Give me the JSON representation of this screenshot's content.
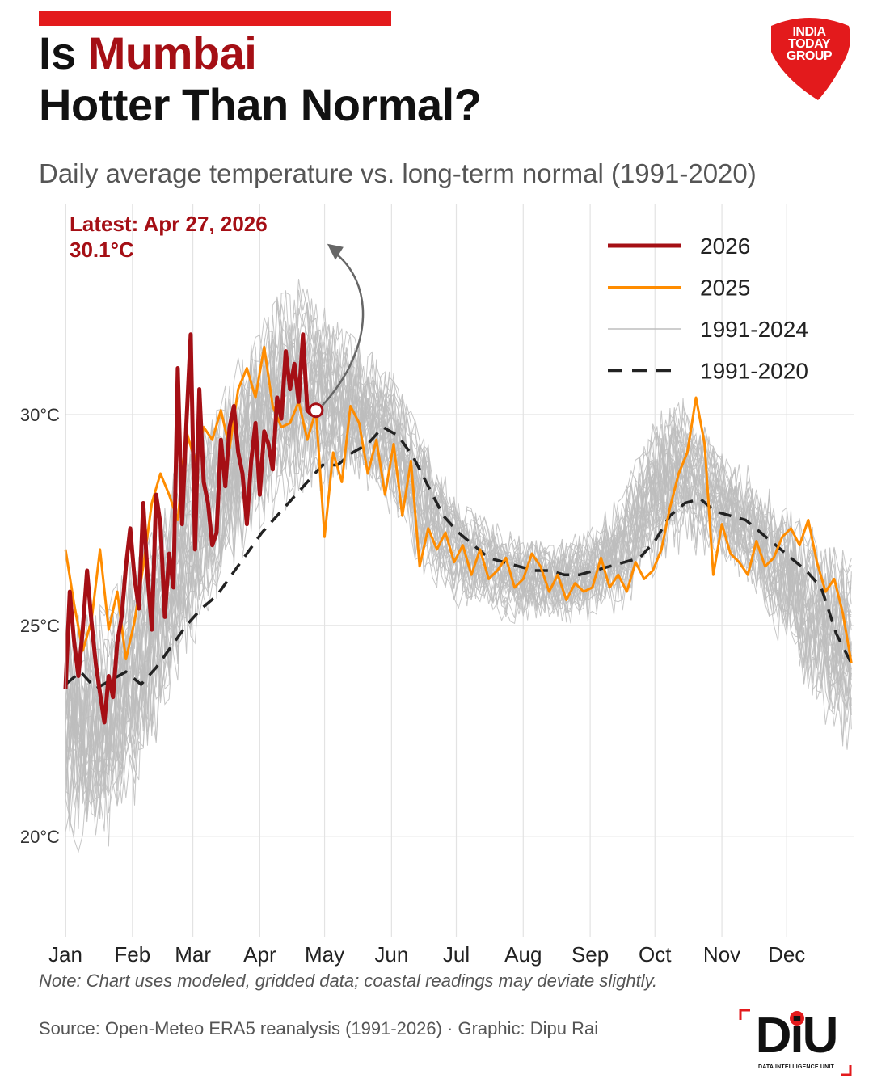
{
  "header": {
    "title_prefix": "Is ",
    "title_city": "Mumbai",
    "title_line2": "Hotter Than Normal?",
    "subtitle": "Daily average temperature vs. long-term normal (1991-2020)"
  },
  "brand": {
    "top_logo_line1": "INDIA",
    "top_logo_line2": "TODAY",
    "top_logo_line3": "GROUP",
    "bottom_logo": "DiU",
    "bottom_logo_sub": "DATA INTELLIGENCE UNIT"
  },
  "colors": {
    "accent": "#e31a1c",
    "series_2026": "#a50f15",
    "series_2025": "#ff8c00",
    "historical": "#bdbdbd",
    "normal": "#222222"
  },
  "annotation": {
    "line1": "Latest: Apr 27, 2026",
    "line2": "30.1°C"
  },
  "footer": {
    "note": "Note: Chart uses modeled, gridded data; coastal readings may deviate slightly.",
    "source": "Source: Open-Meteo ERA5 reanalysis (1991-2026) · Graphic: Dipu Rai"
  },
  "chart_data": {
    "type": "line",
    "title": "Is Mumbai Hotter Than Normal?",
    "subtitle": "Daily average temperature vs. long-term normal (1991-2020)",
    "x_categories": [
      "Jan",
      "Feb",
      "Mar",
      "Apr",
      "May",
      "Jun",
      "Jul",
      "Aug",
      "Sep",
      "Oct",
      "Nov",
      "Dec"
    ],
    "y_ticks": [
      20,
      25,
      30
    ],
    "y_tick_labels": [
      "20°C",
      "25°C",
      "30°C"
    ],
    "ylim": [
      17.6,
      35.0
    ],
    "xlim_days": [
      1,
      366
    ],
    "grid": true,
    "legend_position": "top-right",
    "legend": [
      "2026",
      "2025",
      "1991-2024",
      "1991-2020"
    ],
    "historical_band": {
      "name": "1991-2024",
      "x_day": [
        1,
        15,
        32,
        46,
        60,
        74,
        91,
        105,
        121,
        135,
        152,
        166,
        182,
        196,
        213,
        227,
        244,
        258,
        274,
        288,
        305,
        319,
        335,
        349,
        366
      ],
      "min": [
        19.6,
        19.3,
        20.6,
        22.4,
        24.3,
        25.8,
        27.3,
        27.8,
        28.0,
        28.2,
        27.5,
        26.2,
        25.4,
        25.2,
        25.0,
        25.0,
        25.1,
        25.3,
        26.2,
        26.8,
        26.3,
        25.6,
        24.3,
        22.9,
        21.5
      ],
      "max": [
        25.5,
        25.6,
        26.9,
        28.4,
        29.8,
        30.8,
        32.4,
        33.5,
        32.8,
        32.0,
        31.2,
        29.8,
        28.2,
        27.6,
        27.2,
        27.1,
        27.4,
        28.2,
        30.2,
        30.6,
        29.4,
        28.7,
        28.0,
        27.4,
        26.9
      ]
    },
    "series": [
      {
        "name": "1991-2020",
        "x_day": [
          1,
          8,
          15,
          22,
          29,
          36,
          43,
          50,
          57,
          64,
          71,
          78,
          85,
          92,
          99,
          106,
          113,
          120,
          127,
          134,
          141,
          148,
          155,
          162,
          169,
          176,
          183,
          190,
          197,
          204,
          211,
          218,
          225,
          232,
          239,
          246,
          253,
          260,
          267,
          274,
          281,
          288,
          295,
          302,
          309,
          316,
          323,
          330,
          337,
          344,
          351,
          358,
          365
        ],
        "values": [
          23.6,
          23.9,
          23.5,
          23.7,
          23.9,
          23.6,
          24.0,
          24.5,
          25.0,
          25.4,
          25.7,
          26.2,
          26.7,
          27.2,
          27.6,
          28.0,
          28.4,
          28.8,
          28.8,
          29.1,
          29.3,
          29.7,
          29.5,
          29.0,
          28.3,
          27.6,
          27.2,
          26.9,
          26.6,
          26.5,
          26.4,
          26.3,
          26.3,
          26.2,
          26.2,
          26.3,
          26.4,
          26.5,
          26.6,
          27.0,
          27.6,
          27.9,
          28.0,
          27.7,
          27.6,
          27.5,
          27.2,
          26.9,
          26.6,
          26.3,
          25.9,
          24.8,
          24.1
        ]
      },
      {
        "name": "2025",
        "x_day": [
          1,
          5,
          9,
          13,
          17,
          21,
          25,
          29,
          33,
          37,
          41,
          45,
          49,
          53,
          57,
          61,
          65,
          69,
          73,
          77,
          81,
          85,
          89,
          93,
          97,
          101,
          105,
          109,
          113,
          117,
          121,
          125,
          129,
          133,
          137,
          141,
          145,
          149,
          153,
          157,
          161,
          165,
          169,
          173,
          177,
          181,
          185,
          189,
          193,
          197,
          201,
          205,
          209,
          213,
          217,
          221,
          225,
          229,
          233,
          237,
          241,
          245,
          249,
          253,
          257,
          261,
          265,
          269,
          273,
          277,
          281,
          285,
          289,
          293,
          297,
          301,
          305,
          309,
          313,
          317,
          321,
          325,
          329,
          333,
          337,
          341,
          345,
          349,
          353,
          357,
          361,
          365
        ],
        "values": [
          26.8,
          25.5,
          24.4,
          25.1,
          26.8,
          24.9,
          25.8,
          24.2,
          25.1,
          26.4,
          27.9,
          28.6,
          28.1,
          27.5,
          29.6,
          28.9,
          29.7,
          29.4,
          30.1,
          29.2,
          30.6,
          31.1,
          30.4,
          31.6,
          30.2,
          29.7,
          29.8,
          30.3,
          29.4,
          30.1,
          27.1,
          29.1,
          28.4,
          30.2,
          29.8,
          28.6,
          29.4,
          28.1,
          29.3,
          27.6,
          28.9,
          26.4,
          27.3,
          26.8,
          27.2,
          26.5,
          26.9,
          26.2,
          26.8,
          26.1,
          26.3,
          26.6,
          25.9,
          26.1,
          26.7,
          26.4,
          25.8,
          26.2,
          25.6,
          26.0,
          25.8,
          25.9,
          26.6,
          25.9,
          26.2,
          25.8,
          26.5,
          26.1,
          26.3,
          26.8,
          27.8,
          28.6,
          29.1,
          30.4,
          29.3,
          26.2,
          27.4,
          26.7,
          26.5,
          26.2,
          27.0,
          26.4,
          26.6,
          27.1,
          27.3,
          26.9,
          27.5,
          26.5,
          25.8,
          26.1,
          25.3,
          24.1
        ]
      },
      {
        "name": "2026",
        "x_day": [
          1,
          3,
          5,
          7,
          9,
          11,
          13,
          15,
          17,
          19,
          21,
          23,
          25,
          27,
          29,
          31,
          33,
          35,
          37,
          39,
          41,
          43,
          45,
          47,
          49,
          51,
          53,
          55,
          57,
          59,
          61,
          63,
          65,
          67,
          69,
          71,
          73,
          75,
          77,
          79,
          81,
          83,
          85,
          87,
          89,
          91,
          93,
          95,
          97,
          99,
          101,
          103,
          105,
          107,
          109,
          111,
          113,
          115,
          117
        ],
        "values": [
          23.5,
          25.8,
          24.6,
          23.8,
          24.9,
          26.3,
          25.1,
          24.1,
          23.4,
          22.7,
          23.8,
          23.3,
          24.6,
          25.2,
          26.4,
          27.3,
          26.1,
          25.4,
          27.9,
          26.2,
          24.9,
          28.1,
          27.4,
          25.2,
          26.7,
          25.9,
          31.1,
          27.4,
          29.8,
          31.9,
          26.8,
          30.6,
          28.4,
          27.9,
          26.9,
          27.2,
          29.4,
          28.3,
          29.7,
          30.2,
          29.1,
          28.6,
          27.4,
          28.9,
          29.8,
          28.1,
          29.6,
          29.3,
          28.7,
          30.4,
          29.9,
          31.5,
          30.6,
          31.2,
          30.3,
          31.9,
          30.1,
          30.0,
          30.1
        ]
      }
    ],
    "latest_point": {
      "series": "2026",
      "date": "Apr 27, 2026",
      "x_day": 117,
      "value": 30.1
    }
  }
}
